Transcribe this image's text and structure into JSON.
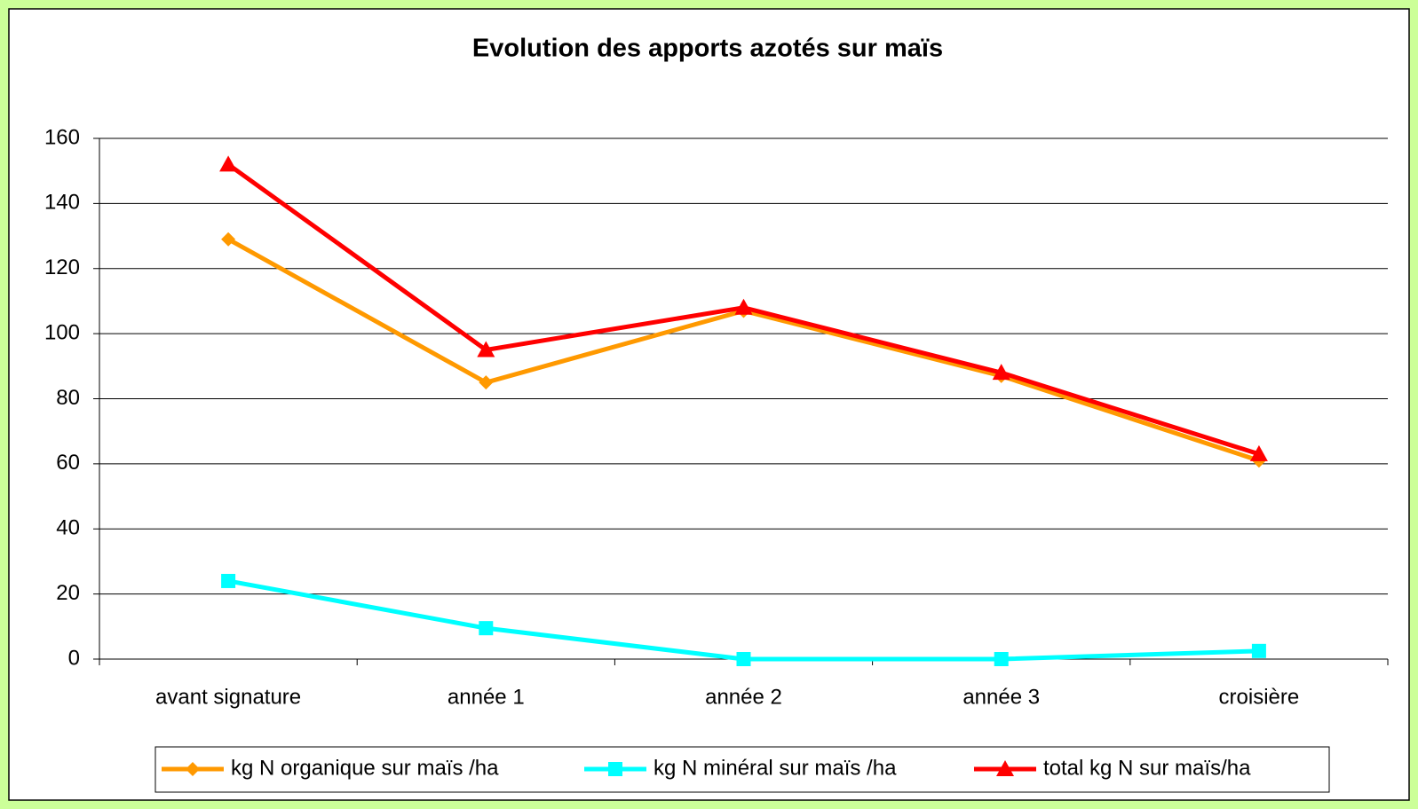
{
  "chart_data": {
    "type": "line",
    "title": "Evolution des apports azotés sur maïs",
    "categories": [
      "avant signature",
      "année 1",
      "année 2",
      "année 3",
      "croisière"
    ],
    "series": [
      {
        "name": "kg N organique sur maïs /ha",
        "color": "#ff9900",
        "marker": "diamond",
        "values": [
          129,
          85,
          107,
          87,
          61
        ]
      },
      {
        "name": "kg N minéral sur  maïs /ha",
        "color": "#00ffff",
        "marker": "square",
        "values": [
          24,
          9.5,
          0,
          0,
          2.5
        ]
      },
      {
        "name": "total kg N sur  maïs/ha",
        "color": "#ff0000",
        "marker": "triangle",
        "values": [
          152,
          95,
          108,
          88,
          63
        ]
      }
    ],
    "ylim": [
      0,
      160
    ],
    "yticks": [
      0,
      20,
      40,
      60,
      80,
      100,
      120,
      140,
      160
    ],
    "grid": true,
    "legend": "bottom"
  }
}
